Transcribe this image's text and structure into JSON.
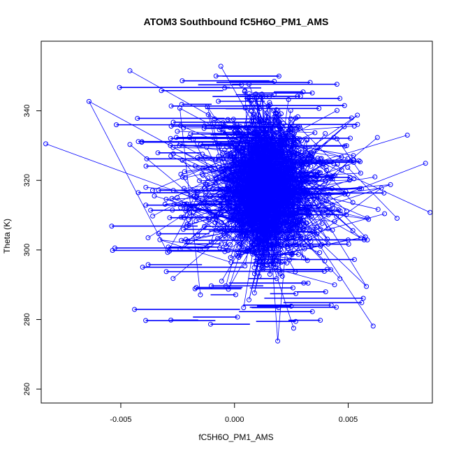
{
  "chart_data": {
    "type": "scatter",
    "title": "ATOM3 Southbound fC5H6O_PM1_AMS",
    "xlabel": "fC5H6O_PM1_AMS",
    "ylabel": "Theta (K)",
    "xlim": [
      -0.0085,
      0.0087
    ],
    "ylim": [
      256,
      360
    ],
    "xticks": [
      -0.005,
      0.0,
      0.005
    ],
    "xtick_labels": [
      "-0.005",
      "0.000",
      "0.005"
    ],
    "yticks": [
      260,
      280,
      300,
      320,
      340
    ],
    "ytick_labels": [
      "260",
      "280",
      "300",
      "320",
      "340"
    ],
    "grid": false,
    "series_color": "#0000ff",
    "marker": "open-circle",
    "connect_points": true,
    "sample_points": [
      {
        "x": -0.0083,
        "y": 330.5
      },
      {
        "x": -0.0064,
        "y": 342.7
      },
      {
        "x": -0.0046,
        "y": 351.5
      },
      {
        "x": -0.0046,
        "y": 330.3
      },
      {
        "x": -0.0039,
        "y": 318.0
      },
      {
        "x": -0.0038,
        "y": 303.5
      },
      {
        "x": -0.0027,
        "y": 291.8
      },
      {
        "x": -0.0022,
        "y": 322.5
      },
      {
        "x": -0.0015,
        "y": 287.1
      },
      {
        "x": -0.0006,
        "y": 352.8
      },
      {
        "x": 0.0004,
        "y": 283.4
      },
      {
        "x": 0.0013,
        "y": 318.0
      },
      {
        "x": 0.0019,
        "y": 273.8
      },
      {
        "x": 0.0026,
        "y": 277.5
      },
      {
        "x": 0.0044,
        "y": 290.0
      },
      {
        "x": 0.0058,
        "y": 289.5
      },
      {
        "x": 0.0061,
        "y": 278.1
      },
      {
        "x": 0.0066,
        "y": 310.4
      },
      {
        "x": 0.0076,
        "y": 333.0
      },
      {
        "x": 0.0084,
        "y": 324.9
      },
      {
        "x": 0.0086,
        "y": 310.8
      }
    ]
  }
}
